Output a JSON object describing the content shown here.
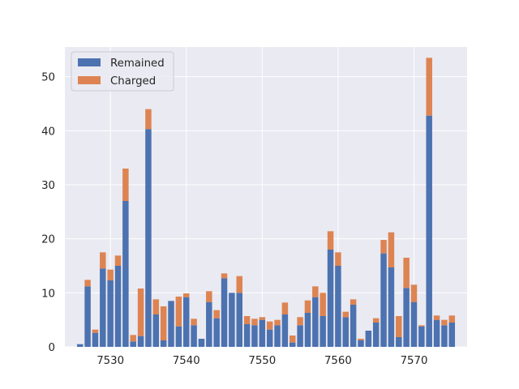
{
  "chart_data": {
    "type": "bar",
    "stacked": true,
    "title": "",
    "xlabel": "",
    "ylabel": "",
    "xlim": [
      7524,
      7577
    ],
    "ylim": [
      0,
      55.5
    ],
    "xticks": [
      7530,
      7540,
      7550,
      7560,
      7570
    ],
    "yticks": [
      0,
      10,
      20,
      30,
      40,
      50
    ],
    "grid": true,
    "legend_position": "top-left",
    "x": [
      7526,
      7527,
      7528,
      7529,
      7530,
      7531,
      7532,
      7533,
      7534,
      7535,
      7536,
      7537,
      7538,
      7539,
      7540,
      7541,
      7542,
      7543,
      7544,
      7545,
      7546,
      7547,
      7548,
      7549,
      7550,
      7551,
      7552,
      7553,
      7554,
      7555,
      7556,
      7557,
      7558,
      7559,
      7560,
      7561,
      7562,
      7563,
      7564,
      7565,
      7566,
      7567,
      7568,
      7569,
      7570,
      7571,
      7572,
      7573,
      7574,
      7575
    ],
    "series": [
      {
        "name": "Remained",
        "color": "#4c72b0",
        "values": [
          0.5,
          11.2,
          2.6,
          14.5,
          12.3,
          15.0,
          27.0,
          1.0,
          2.0,
          40.3,
          6.0,
          1.2,
          8.5,
          3.8,
          9.2,
          4.0,
          1.5,
          8.3,
          5.3,
          12.7,
          10.0,
          10.0,
          4.2,
          4.0,
          5.0,
          3.2,
          4.0,
          6.0,
          0.8,
          4.0,
          6.3,
          9.2,
          5.7,
          18.0,
          15.0,
          5.5,
          7.8,
          1.2,
          3.0,
          4.5,
          17.3,
          14.7,
          1.8,
          10.9,
          8.3,
          3.8,
          42.8,
          5.0,
          4.0,
          4.5
        ]
      },
      {
        "name": "Charged",
        "color": "#dd8452",
        "values": [
          0.0,
          1.2,
          0.6,
          3.0,
          2.0,
          1.9,
          6.0,
          1.2,
          8.8,
          3.7,
          2.8,
          6.3,
          0.0,
          5.5,
          0.7,
          1.2,
          0.0,
          2.0,
          1.5,
          0.9,
          0.0,
          3.1,
          1.5,
          1.2,
          0.5,
          1.5,
          1.0,
          2.2,
          1.3,
          1.5,
          2.3,
          2.0,
          4.3,
          3.4,
          2.5,
          1.0,
          1.0,
          0.3,
          0.0,
          0.8,
          2.5,
          6.5,
          3.9,
          5.6,
          3.2,
          0.2,
          10.7,
          0.8,
          1.0,
          1.3
        ]
      }
    ]
  }
}
